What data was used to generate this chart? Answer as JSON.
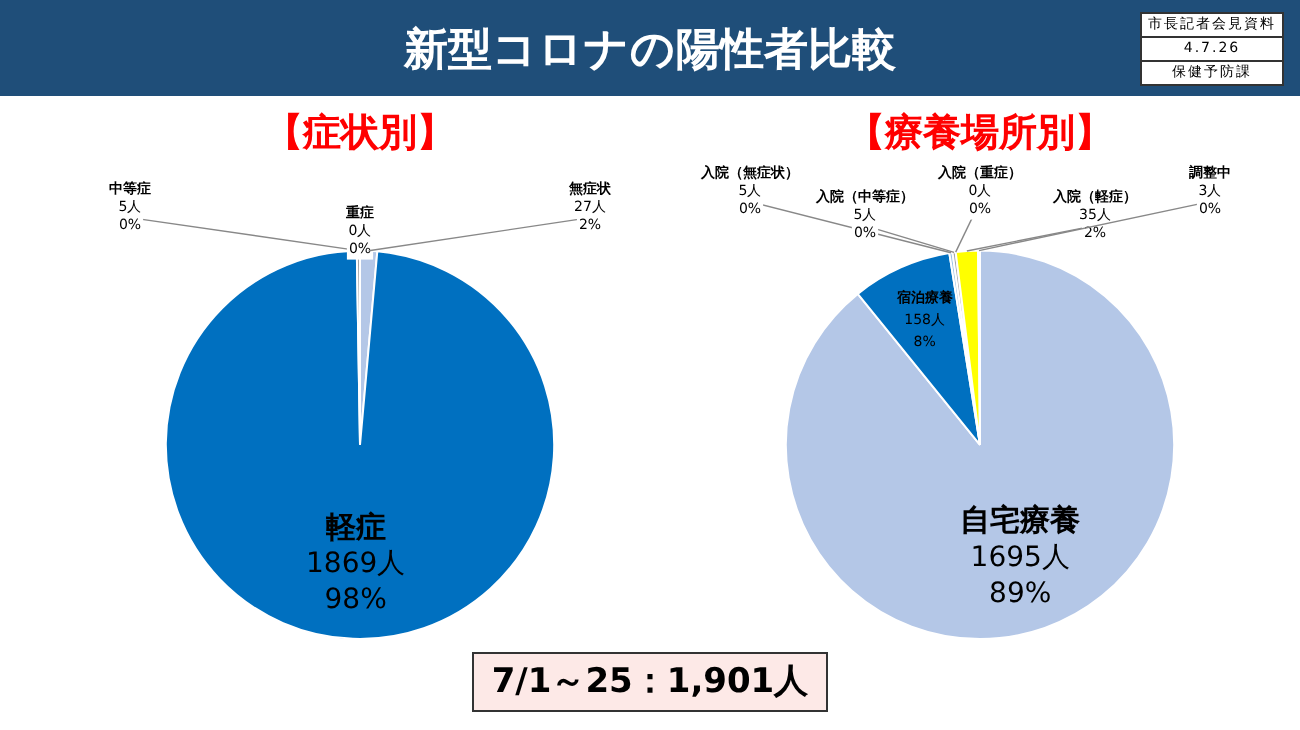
{
  "chart_data": [
    {
      "type": "pie",
      "title": "【症状別】",
      "categories": [
        "無症状",
        "軽症",
        "中等症",
        "重症"
      ],
      "values": [
        27,
        1869,
        5,
        0
      ],
      "colors": [
        "#b4c7e7",
        "#0070c0",
        "#a5a5a5",
        "#ffc000"
      ],
      "value_labels": [
        "27人\n2%",
        "1869人\n98%",
        "5人\n0%",
        "0人\n0%"
      ],
      "legend": false,
      "annotations": [
        "新型コロナの陽性者比較",
        "市長記者会見資料",
        "4.7.26",
        "保健予防課",
        "7/1～25：1,901人"
      ]
    },
    {
      "type": "pie",
      "title": "【療養場所別】",
      "categories": [
        "自宅療養",
        "宿泊療養",
        "入院（無症状）",
        "入院（中等症）",
        "入院（重症）",
        "入院（軽症）",
        "調整中"
      ],
      "values": [
        1695,
        158,
        5,
        5,
        0,
        35,
        3
      ],
      "colors": [
        "#b4c7e7",
        "#0070c0",
        "#9dc3e6",
        "#a5a5a5",
        "#ed7d31",
        "#ffff00",
        "#70ad47"
      ],
      "value_labels": [
        "1695人\n89%",
        "158人\n8%",
        "5人\n0%",
        "5人\n0%",
        "0人\n0%",
        "35人\n2%",
        "3人\n0%"
      ],
      "legend": false
    }
  ]
}
